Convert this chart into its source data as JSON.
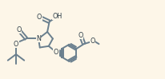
{
  "bg_color": "#fdf6e8",
  "lc": "#6a7f8e",
  "lw": 1.4,
  "fs": 5.8,
  "figsize": [
    2.06,
    0.99
  ],
  "dpi": 100,
  "xlim": [
    0,
    2.06
  ],
  "ylim": [
    0,
    0.99
  ]
}
